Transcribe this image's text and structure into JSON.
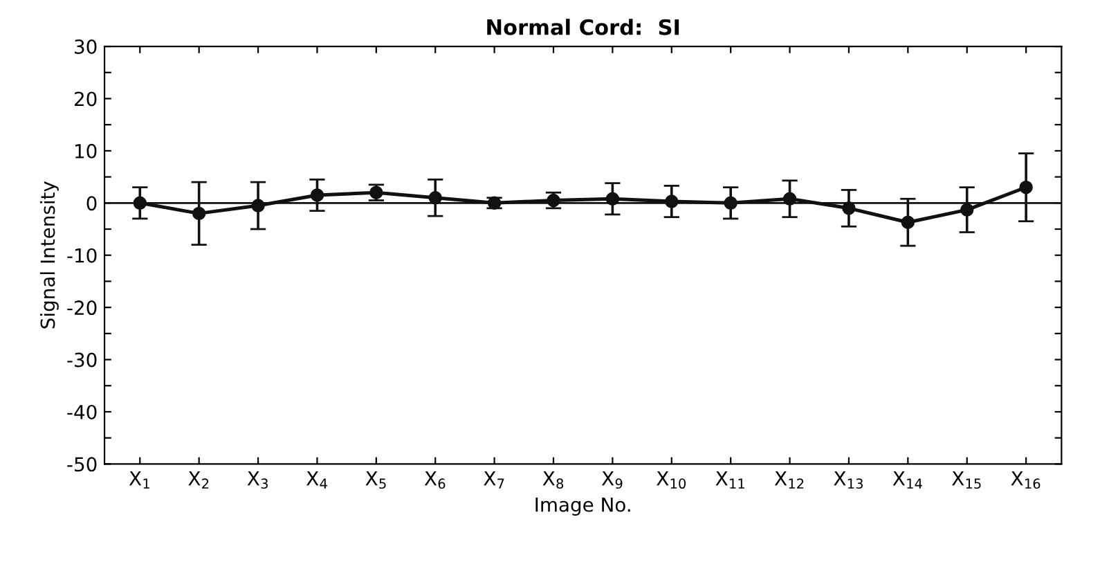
{
  "chart_data": {
    "type": "line",
    "title": "Normal Cord:  SI",
    "xlabel": "Image No.",
    "ylabel": "Signal Intensity",
    "categories": [
      "X$_{1}$",
      "X$_{2}$",
      "X$_{3}$",
      "X$_{4}$",
      "X$_{5}$",
      "X$_{6}$",
      "X$_{7}$",
      "X$_{8}$",
      "X$_{9}$",
      "X$_{10}$",
      "X$_{11}$",
      "X$_{12}$",
      "X$_{13}$",
      "X$_{14}$",
      "X$_{15}$",
      "X$_{16}$"
    ],
    "values": [
      0,
      -2,
      -0.5,
      1.5,
      2,
      1,
      0,
      0.5,
      0.8,
      0.3,
      0,
      0.8,
      -1,
      -3.7,
      -1.3,
      3
    ],
    "errors": [
      3,
      6,
      4.5,
      3,
      1.5,
      3.5,
      1,
      1.5,
      3,
      3,
      3,
      3.5,
      3.5,
      4.5,
      4.3,
      6.5
    ],
    "color": "#111111",
    "marker": "circle",
    "line_style": "solid",
    "ylim": [
      -50,
      30
    ],
    "yticks": [
      -50,
      {
        "value": -45,
        "label": null
      },
      -40,
      {
        "value": -35,
        "label": null
      },
      -30,
      {
        "value": -25,
        "label": null
      },
      -20,
      {
        "value": -15,
        "label": null
      },
      -10,
      {
        "value": -5,
        "label": null
      },
      0,
      {
        "value": 5,
        "label": null
      },
      10,
      {
        "value": 15,
        "label": null
      },
      20,
      {
        "value": 25,
        "label": null
      },
      30
    ],
    "ref_lines": [
      {
        "axis": "y",
        "value": 0,
        "color": "#111111"
      }
    ],
    "grid": false
  }
}
